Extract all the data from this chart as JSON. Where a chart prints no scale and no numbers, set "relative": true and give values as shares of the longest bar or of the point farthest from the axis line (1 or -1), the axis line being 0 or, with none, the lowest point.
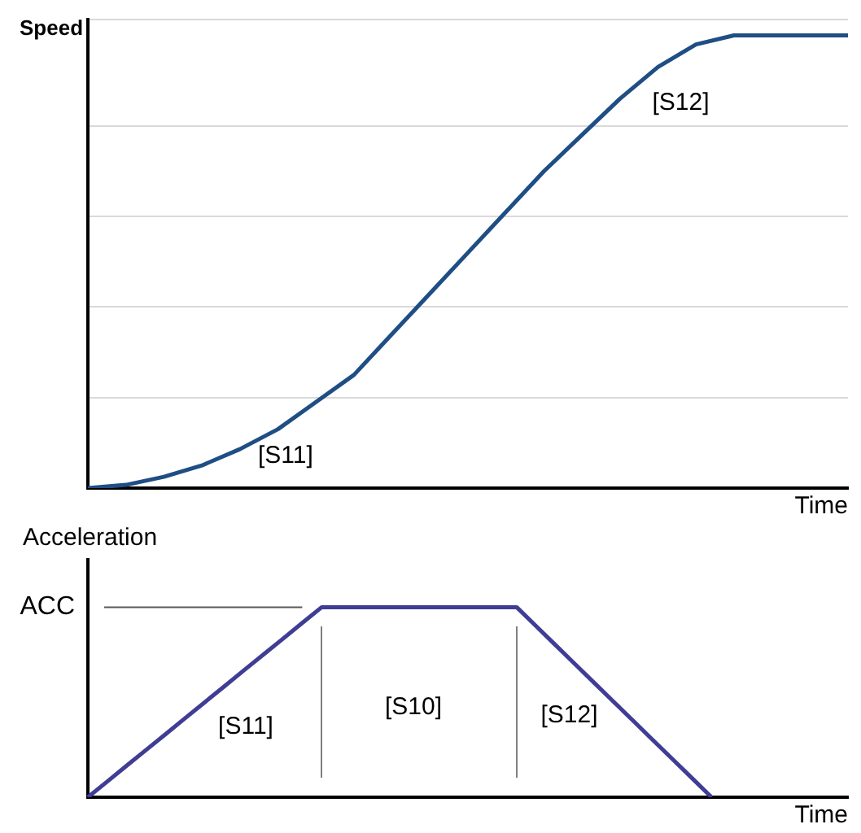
{
  "chart_data": [
    {
      "type": "line",
      "relative": true,
      "ylabel": "Speed",
      "xlabel": "Time",
      "grid": "y",
      "legend": false,
      "annotations": [
        "[S11]",
        "[S12]"
      ],
      "categories": [
        null,
        null,
        null,
        null,
        null,
        null,
        null,
        null,
        null,
        null,
        null,
        null,
        null,
        null,
        null,
        null,
        null,
        null,
        null,
        null,
        null
      ],
      "series": [
        {
          "color": "#1f4e84",
          "values": [
            0,
            0.007,
            0.025,
            0.05,
            0.086,
            0.13,
            0.19,
            0.25,
            0.34,
            0.43,
            0.52,
            0.61,
            0.7,
            0.78,
            0.86,
            0.93,
            0.98,
            1,
            1,
            1,
            1
          ]
        }
      ]
    },
    {
      "type": "line",
      "relative": true,
      "ylabel": "Acceleration",
      "xlabel": "Time",
      "legend": false,
      "annotations": [
        "[S11]",
        "[S10]",
        "[S12]"
      ],
      "ref_lines": [
        {
          "axis": "y",
          "value": 1,
          "label": "ACC",
          "color": "#595959"
        }
      ],
      "categories": [
        null,
        null,
        null,
        null,
        null,
        null,
        null,
        null,
        null,
        null,
        null,
        null,
        null,
        null,
        null,
        null,
        null,
        null,
        null,
        null,
        null,
        null,
        null,
        null,
        null,
        null,
        null,
        null,
        null,
        null,
        null,
        null,
        null,
        null,
        null,
        null,
        null,
        null,
        null,
        null
      ],
      "series": [
        {
          "color": "#3f3d94",
          "values": [
            0,
            0.083,
            0.167,
            0.25,
            0.333,
            0.417,
            0.5,
            0.583,
            0.667,
            0.75,
            0.833,
            0.917,
            1,
            1,
            1,
            1,
            1,
            1,
            1,
            1,
            1,
            1,
            1,
            0.9,
            0.8,
            0.7,
            0.6,
            0.5,
            0.4,
            0.3,
            0.2,
            0.1,
            0,
            null,
            null,
            null,
            null,
            null,
            null,
            null
          ]
        }
      ]
    }
  ]
}
